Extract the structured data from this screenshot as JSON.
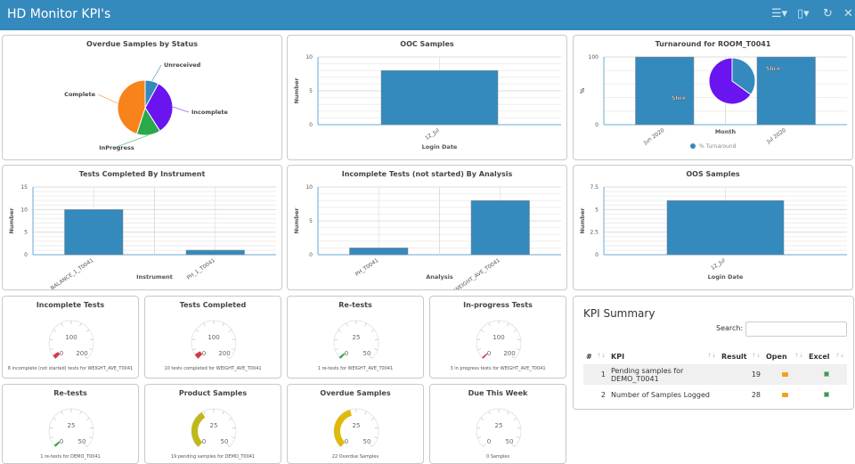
{
  "header": {
    "title": "HD Monitor KPI's",
    "icons": [
      "menu-icon",
      "bookmark-icon",
      "refresh-icon",
      "close-icon"
    ]
  },
  "colors": {
    "bar": "#3489bd",
    "header": "#3489bd"
  },
  "charts": {
    "overdue": {
      "title": "Overdue Samples by Status",
      "chart_data": {
        "type": "pie",
        "labels": [
          "Unreceived",
          "Incomplete",
          "InProgress",
          "Complete"
        ],
        "values": [
          8,
          33,
          14,
          45
        ],
        "colors": [
          "#3489bd",
          "#6a14f0",
          "#2ba84a",
          "#f8831b"
        ]
      }
    },
    "ooc": {
      "title": "OOC Samples",
      "chart_data": {
        "type": "bar",
        "categories": [
          "12_Jul"
        ],
        "values": [
          8
        ],
        "ylim": [
          0,
          10
        ],
        "yticks": [
          0,
          5,
          10
        ],
        "xlabel": "Login Date",
        "ylabel": "Number"
      }
    },
    "turnaround": {
      "title": "Turnaround for ROOM_T0041",
      "chart_data": {
        "type": "bar",
        "categories": [
          "Jun 2020",
          "Jul 2020"
        ],
        "values": [
          100,
          100
        ],
        "ylim": [
          0,
          100
        ],
        "yticks": [
          0,
          100
        ],
        "xlabel": "Month",
        "ylabel": "%",
        "legend": "% Turnaround",
        "overlay_pie": {
          "labels": [
            "Slice",
            "Slice"
          ],
          "values": [
            35,
            65
          ],
          "colors": [
            "#3489bd",
            "#6a14f0"
          ]
        }
      }
    },
    "byInstrument": {
      "title": "Tests Completed By Instrument",
      "chart_data": {
        "type": "bar",
        "categories": [
          "BALANCE_1_T0041",
          "PH_1_T0041"
        ],
        "values": [
          10,
          1
        ],
        "ylim": [
          0,
          15
        ],
        "yticks": [
          0,
          5,
          10,
          15
        ],
        "xlabel": "Instrument",
        "ylabel": "Number"
      }
    },
    "byAnalysis": {
      "title": "Incomplete Tests (not started) By Analysis",
      "chart_data": {
        "type": "bar",
        "categories": [
          "PH_T0041",
          "WEIGHT_AVE_T0041"
        ],
        "values": [
          1,
          8
        ],
        "ylim": [
          0,
          10
        ],
        "yticks": [
          0,
          5,
          10
        ],
        "xlabel": "Analysis",
        "ylabel": "Number"
      }
    },
    "oos": {
      "title": "OOS Samples",
      "chart_data": {
        "type": "bar",
        "categories": [
          "12_Jul"
        ],
        "values": [
          6
        ],
        "ylim": [
          0,
          7.5
        ],
        "yticks": [
          0,
          2.5,
          5,
          7.5
        ],
        "xlabel": "Login Date",
        "ylabel": "Number"
      }
    }
  },
  "gauges": [
    {
      "title": "Incomplete Tests",
      "value": 8,
      "max": 200,
      "ticks": [
        "0",
        "100",
        "200"
      ],
      "color": "#dc3545",
      "caption": "8 incomplete (not started) tests for WEIGHT_AVE_T0041"
    },
    {
      "title": "Tests Completed",
      "value": 10,
      "max": 200,
      "ticks": [
        "0",
        "100",
        "200"
      ],
      "color": "#dc3545",
      "caption": "10 tests completed for WEIGHT_AVE_T0041"
    },
    {
      "title": "Re-tests",
      "value": 1,
      "max": 50,
      "ticks": [
        "0",
        "25",
        "50"
      ],
      "color": "#28a745",
      "caption": "1 re-tests for WEIGHT_AVE_T0041"
    },
    {
      "title": "In-progress Tests",
      "value": 3,
      "max": 200,
      "ticks": [
        "0",
        "100",
        "200"
      ],
      "color": "#dc3545",
      "caption": "3 in progress tests for WEIGHT_AVE_T0041"
    },
    {
      "title": "Re-tests",
      "value": 1,
      "max": 50,
      "ticks": [
        "0",
        "25",
        "50"
      ],
      "color": "#28a745",
      "caption": "1 re-tests for DEMO_T0041"
    },
    {
      "title": "Product Samples",
      "value": 19,
      "max": 50,
      "ticks": [
        "0",
        "25",
        "50"
      ],
      "color": "#c0b81a",
      "caption": "19 pending samples for DEMO_T0041"
    },
    {
      "title": "Overdue Samples",
      "value": 22,
      "max": 50,
      "ticks": [
        "0",
        "25",
        "50"
      ],
      "color": "#e0b90b",
      "caption": "22 Overdue Samples"
    },
    {
      "title": "Due This Week",
      "value": 0,
      "max": 50,
      "ticks": [
        "0",
        "25",
        "50"
      ],
      "color": "#28a745",
      "caption": "0 Samples"
    }
  ],
  "kpi": {
    "title": "KPI Summary",
    "search_label": "Search:",
    "search_value": "",
    "columns": [
      "#",
      "KPI",
      "Result",
      "Open",
      "Excel"
    ],
    "rows": [
      {
        "n": "1",
        "kpi": "Pending samples for DEMO_T0041",
        "result": "19"
      },
      {
        "n": "2",
        "kpi": "Number of Samples Logged",
        "result": "28"
      }
    ]
  }
}
